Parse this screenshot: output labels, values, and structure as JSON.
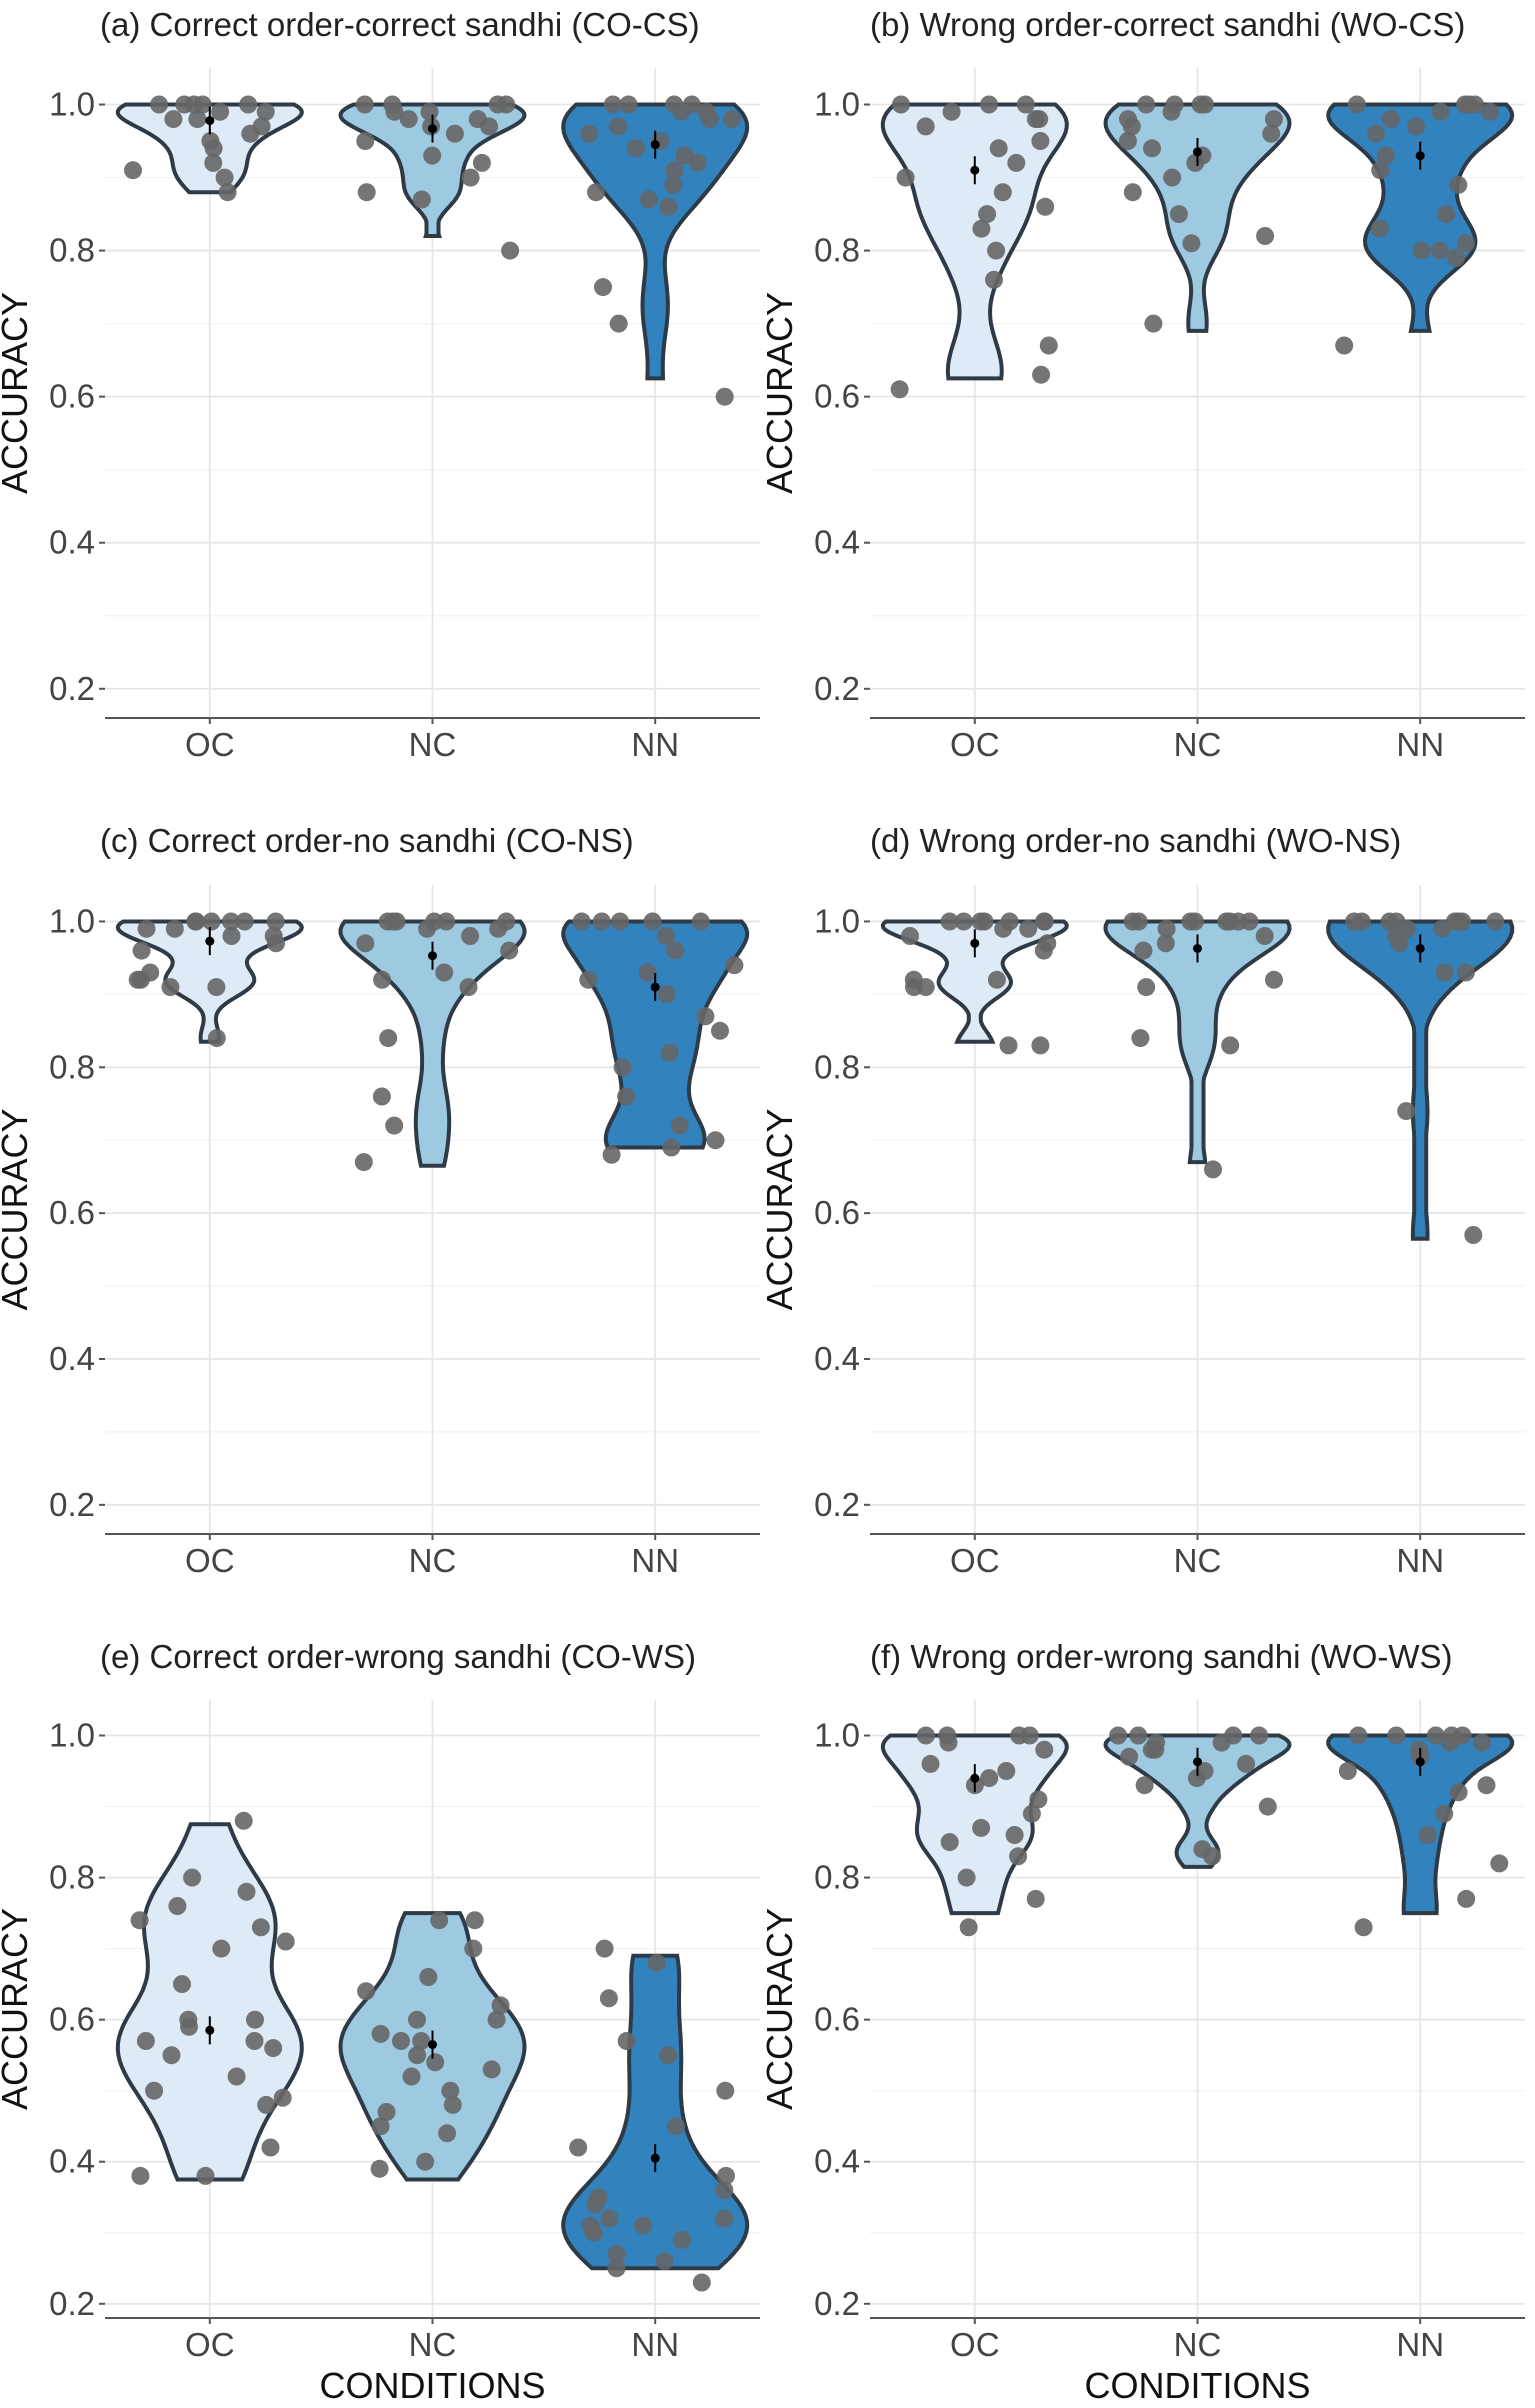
{
  "figure": {
    "x_axis_title": "CONDITIONS",
    "y_axis_title": "ACCURACY"
  },
  "chart_data": [
    {
      "type": "violin",
      "panel": "a",
      "title": "(a) Correct order-correct sandhi (CO-CS)",
      "xlabel": "",
      "ylabel": "ACCURACY",
      "categories": [
        "OC",
        "NC",
        "NN"
      ],
      "colors": [
        "#deebf7",
        "#9ecae1",
        "#3182bd"
      ],
      "ylim": [
        0.16,
        1.05
      ],
      "yticks": [
        "0.2",
        "0.4",
        "0.6",
        "0.8",
        "1.0"
      ],
      "series": [
        {
          "name": "OC",
          "min": 0.88,
          "max": 1.0,
          "mean": 0.978,
          "points": [
            1.0,
            1.0,
            0.99,
            1.0,
            0.98,
            0.97,
            0.96,
            0.95,
            0.94,
            0.92,
            0.91,
            0.9,
            0.88,
            1.0,
            0.99,
            1.0,
            0.98
          ]
        },
        {
          "name": "NC",
          "min": 0.82,
          "max": 1.0,
          "mean": 0.967,
          "points": [
            1.0,
            1.0,
            0.99,
            0.98,
            0.97,
            0.96,
            0.95,
            0.93,
            0.92,
            0.9,
            0.88,
            0.87,
            0.8,
            1.0,
            0.99,
            0.98,
            0.97,
            1.0
          ]
        },
        {
          "name": "NN",
          "min": 0.625,
          "max": 1.0,
          "mean": 0.945,
          "points": [
            1.0,
            1.0,
            1.0,
            0.99,
            0.98,
            0.97,
            0.96,
            0.95,
            0.94,
            0.93,
            0.92,
            0.91,
            0.89,
            0.88,
            0.87,
            0.86,
            0.75,
            0.7,
            0.6,
            1.0,
            0.99,
            0.98
          ]
        }
      ]
    },
    {
      "type": "violin",
      "panel": "b",
      "title": "(b) Wrong order-correct sandhi (WO-CS)",
      "xlabel": "",
      "ylabel": "ACCURACY",
      "categories": [
        "OC",
        "NC",
        "NN"
      ],
      "colors": [
        "#deebf7",
        "#9ecae1",
        "#3182bd"
      ],
      "ylim": [
        0.16,
        1.05
      ],
      "yticks": [
        "0.2",
        "0.4",
        "0.6",
        "0.8",
        "1.0"
      ],
      "series": [
        {
          "name": "OC",
          "min": 0.625,
          "max": 1.0,
          "mean": 0.91,
          "points": [
            1.0,
            1.0,
            0.99,
            0.98,
            0.97,
            0.95,
            0.94,
            0.92,
            0.9,
            0.88,
            0.86,
            0.85,
            0.83,
            0.8,
            0.76,
            0.67,
            0.63,
            0.61,
            1.0,
            0.98
          ]
        },
        {
          "name": "NC",
          "min": 0.69,
          "max": 1.0,
          "mean": 0.935,
          "points": [
            1.0,
            1.0,
            1.0,
            0.99,
            0.98,
            0.97,
            0.96,
            0.95,
            0.94,
            0.93,
            0.92,
            0.9,
            0.88,
            0.85,
            0.82,
            0.81,
            0.7,
            1.0,
            0.98
          ]
        },
        {
          "name": "NN",
          "min": 0.69,
          "max": 1.0,
          "mean": 0.93,
          "points": [
            1.0,
            1.0,
            1.0,
            0.99,
            0.98,
            0.97,
            0.96,
            0.93,
            0.91,
            0.89,
            0.85,
            0.83,
            0.81,
            0.8,
            0.8,
            0.79,
            0.67,
            1.0,
            0.99
          ]
        }
      ]
    },
    {
      "type": "violin",
      "panel": "c",
      "title": "(c) Correct order-no sandhi (CO-NS)",
      "xlabel": "",
      "ylabel": "ACCURACY",
      "categories": [
        "OC",
        "NC",
        "NN"
      ],
      "colors": [
        "#deebf7",
        "#9ecae1",
        "#3182bd"
      ],
      "ylim": [
        0.16,
        1.05
      ],
      "yticks": [
        "0.2",
        "0.4",
        "0.6",
        "0.8",
        "1.0"
      ],
      "series": [
        {
          "name": "OC",
          "min": 0.835,
          "max": 1.0,
          "mean": 0.973,
          "points": [
            1.0,
            1.0,
            1.0,
            1.0,
            0.99,
            0.99,
            0.98,
            0.98,
            0.97,
            0.96,
            0.93,
            0.92,
            0.92,
            0.91,
            0.91,
            0.84,
            1.0,
            1.0
          ]
        },
        {
          "name": "NC",
          "min": 0.665,
          "max": 1.0,
          "mean": 0.953,
          "points": [
            1.0,
            1.0,
            1.0,
            1.0,
            0.99,
            0.98,
            0.97,
            0.96,
            0.93,
            0.92,
            0.91,
            0.84,
            0.76,
            0.72,
            0.67,
            1.0,
            1.0,
            0.99
          ]
        },
        {
          "name": "NN",
          "min": 0.69,
          "max": 1.0,
          "mean": 0.91,
          "points": [
            1.0,
            1.0,
            1.0,
            1.0,
            1.0,
            0.98,
            0.96,
            0.94,
            0.93,
            0.92,
            0.9,
            0.87,
            0.85,
            0.82,
            0.8,
            0.76,
            0.72,
            0.7,
            0.69,
            0.68
          ]
        }
      ]
    },
    {
      "type": "violin",
      "panel": "d",
      "title": "(d) Wrong order-no sandhi (WO-NS)",
      "xlabel": "",
      "ylabel": "ACCURACY",
      "categories": [
        "OC",
        "NC",
        "NN"
      ],
      "colors": [
        "#deebf7",
        "#9ecae1",
        "#3182bd"
      ],
      "ylim": [
        0.16,
        1.05
      ],
      "yticks": [
        "0.2",
        "0.4",
        "0.6",
        "0.8",
        "1.0"
      ],
      "series": [
        {
          "name": "OC",
          "min": 0.835,
          "max": 1.0,
          "mean": 0.97,
          "points": [
            1.0,
            1.0,
            1.0,
            1.0,
            1.0,
            0.99,
            0.99,
            0.98,
            0.97,
            0.96,
            0.92,
            0.92,
            0.91,
            0.91,
            0.83,
            0.83,
            1.0,
            1.0
          ]
        },
        {
          "name": "NC",
          "min": 0.67,
          "max": 1.0,
          "mean": 0.963,
          "points": [
            1.0,
            1.0,
            1.0,
            1.0,
            1.0,
            0.99,
            0.98,
            0.97,
            0.96,
            0.92,
            0.91,
            0.84,
            0.83,
            0.66,
            1.0,
            1.0,
            1.0
          ]
        },
        {
          "name": "NN",
          "min": 0.565,
          "max": 1.0,
          "mean": 0.963,
          "points": [
            1.0,
            1.0,
            1.0,
            1.0,
            1.0,
            1.0,
            0.99,
            0.98,
            0.97,
            0.93,
            0.93,
            0.74,
            0.57,
            1.0,
            1.0,
            0.99
          ]
        }
      ]
    },
    {
      "type": "violin",
      "panel": "e",
      "title": "(e) Correct order-wrong sandhi (CO-WS)",
      "xlabel": "CONDITIONS",
      "ylabel": "ACCURACY",
      "categories": [
        "OC",
        "NC",
        "NN"
      ],
      "colors": [
        "#deebf7",
        "#9ecae1",
        "#3182bd"
      ],
      "ylim": [
        0.18,
        1.05
      ],
      "yticks": [
        "0.2",
        "0.4",
        "0.6",
        "0.8",
        "1.0"
      ],
      "series": [
        {
          "name": "OC",
          "min": 0.375,
          "max": 0.875,
          "mean": 0.585,
          "points": [
            0.88,
            0.8,
            0.78,
            0.76,
            0.74,
            0.73,
            0.71,
            0.7,
            0.65,
            0.6,
            0.59,
            0.57,
            0.57,
            0.56,
            0.55,
            0.5,
            0.49,
            0.48,
            0.42,
            0.38,
            0.38,
            0.6,
            0.52
          ]
        },
        {
          "name": "NC",
          "min": 0.375,
          "max": 0.75,
          "mean": 0.565,
          "points": [
            0.74,
            0.74,
            0.7,
            0.66,
            0.64,
            0.62,
            0.6,
            0.58,
            0.57,
            0.55,
            0.54,
            0.53,
            0.5,
            0.48,
            0.47,
            0.45,
            0.44,
            0.4,
            0.39,
            0.6,
            0.57,
            0.52
          ]
        },
        {
          "name": "NN",
          "min": 0.25,
          "max": 0.69,
          "mean": 0.405,
          "points": [
            0.7,
            0.68,
            0.63,
            0.57,
            0.55,
            0.5,
            0.45,
            0.42,
            0.38,
            0.36,
            0.34,
            0.32,
            0.32,
            0.31,
            0.3,
            0.29,
            0.27,
            0.26,
            0.25,
            0.23,
            0.35,
            0.31
          ]
        }
      ]
    },
    {
      "type": "violin",
      "panel": "f",
      "title": "(f) Wrong order-wrong sandhi (WO-WS)",
      "xlabel": "CONDITIONS",
      "ylabel": "ACCURACY",
      "categories": [
        "OC",
        "NC",
        "NN"
      ],
      "colors": [
        "#deebf7",
        "#9ecae1",
        "#3182bd"
      ],
      "ylim": [
        0.18,
        1.05
      ],
      "yticks": [
        "0.2",
        "0.4",
        "0.6",
        "0.8",
        "1.0"
      ],
      "series": [
        {
          "name": "OC",
          "min": 0.75,
          "max": 1.0,
          "mean": 0.94,
          "points": [
            1.0,
            1.0,
            1.0,
            0.99,
            0.98,
            0.96,
            0.95,
            0.94,
            0.93,
            0.91,
            0.89,
            0.87,
            0.86,
            0.85,
            0.83,
            0.8,
            0.77,
            0.73,
            1.0
          ]
        },
        {
          "name": "NC",
          "min": 0.815,
          "max": 1.0,
          "mean": 0.963,
          "points": [
            1.0,
            1.0,
            1.0,
            0.99,
            0.99,
            0.98,
            0.97,
            0.96,
            0.95,
            0.94,
            0.93,
            0.9,
            0.84,
            0.83,
            1.0,
            0.98
          ]
        },
        {
          "name": "NN",
          "min": 0.75,
          "max": 1.0,
          "mean": 0.963,
          "points": [
            1.0,
            1.0,
            1.0,
            1.0,
            0.99,
            0.99,
            0.98,
            0.97,
            0.95,
            0.93,
            0.92,
            0.89,
            0.86,
            0.82,
            0.77,
            0.73,
            1.0
          ]
        }
      ]
    }
  ]
}
